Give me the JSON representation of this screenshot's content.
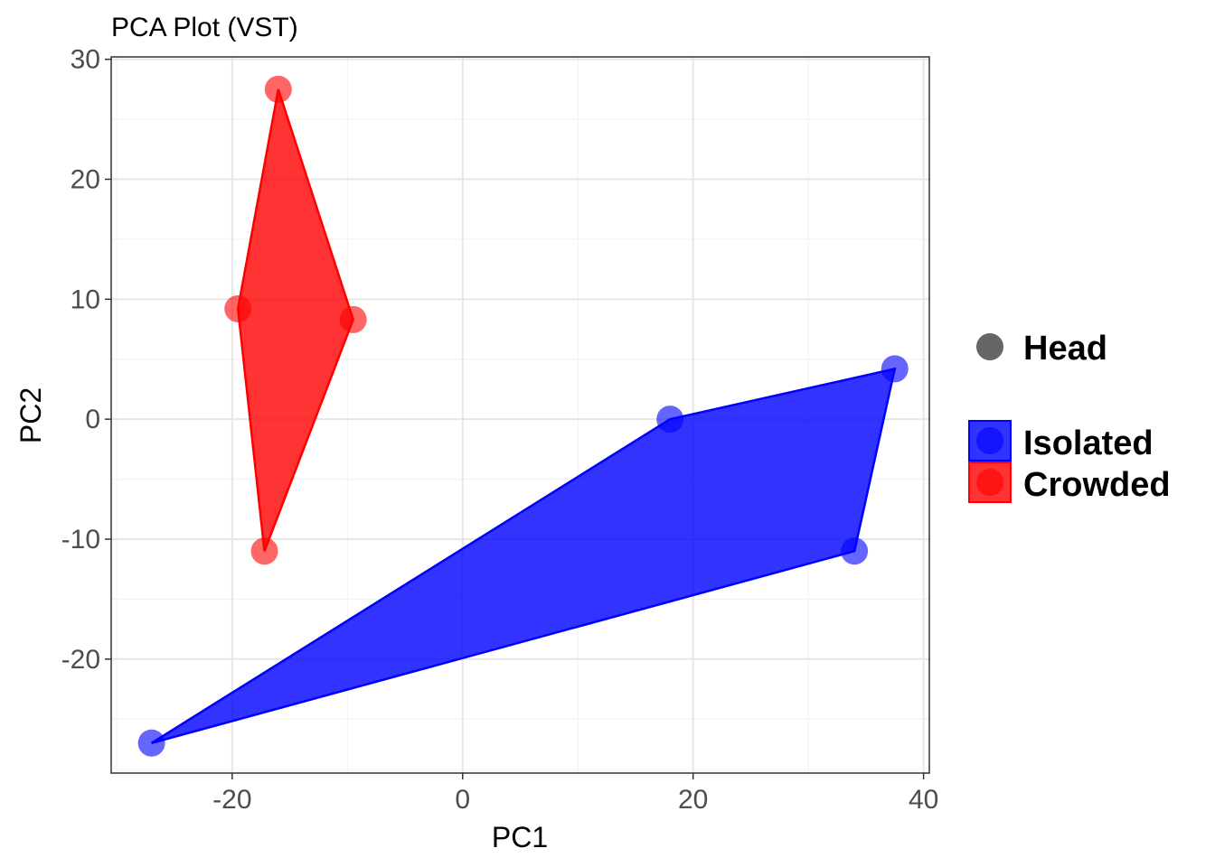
{
  "chart_data": {
    "type": "scatter",
    "title": "PCA Plot (VST)",
    "xlabel": "PC1",
    "ylabel": "PC2",
    "xlim": [
      -30.5,
      40.5
    ],
    "ylim": [
      -29.5,
      30.2
    ],
    "x_ticks": [
      -20,
      0,
      20,
      40
    ],
    "y_ticks": [
      30,
      20,
      10,
      0,
      -10,
      -20
    ],
    "x_tick_labels": [
      "-20",
      "0",
      "20",
      "40"
    ],
    "y_tick_labels": [
      "30",
      "20",
      "10",
      "0",
      "-10",
      "-20"
    ],
    "grid": true,
    "legend_position": "right",
    "shape_legend": {
      "label": "Head",
      "color": "#666666"
    },
    "series": [
      {
        "name": "Isolated",
        "color": "#0000ff",
        "points": [
          {
            "x": -27.0,
            "y": -27.0
          },
          {
            "x": 18.0,
            "y": 0.0
          },
          {
            "x": 34.0,
            "y": -11.0
          },
          {
            "x": 37.5,
            "y": 4.2
          }
        ],
        "hull": [
          {
            "x": -27.0,
            "y": -27.0
          },
          {
            "x": 18.0,
            "y": 0.0
          },
          {
            "x": 37.5,
            "y": 4.2
          },
          {
            "x": 34.0,
            "y": -11.0
          }
        ]
      },
      {
        "name": "Crowded",
        "color": "#ff0000",
        "points": [
          {
            "x": -16.0,
            "y": 27.5
          },
          {
            "x": -19.5,
            "y": 9.2
          },
          {
            "x": -9.5,
            "y": 8.3
          },
          {
            "x": -17.2,
            "y": -11.0
          }
        ],
        "hull": [
          {
            "x": -16.0,
            "y": 27.5
          },
          {
            "x": -9.5,
            "y": 8.3
          },
          {
            "x": -17.2,
            "y": -11.0
          },
          {
            "x": -19.5,
            "y": 9.2
          }
        ]
      }
    ]
  }
}
